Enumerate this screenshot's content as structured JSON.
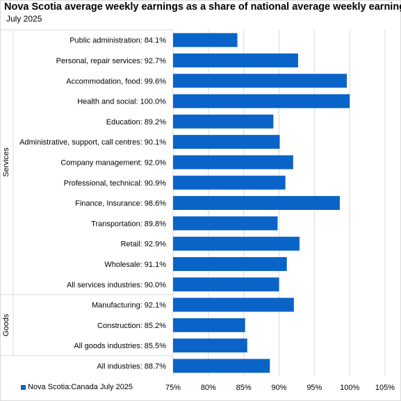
{
  "header": {
    "title": "Nova Scotia average weekly earnings as a share of national average weekly earnings",
    "subtitle": "July 2025"
  },
  "legend": {
    "label": "Nova Scotia:Canada July 2025"
  },
  "colors": {
    "bar": "#0a64c8",
    "grid": "#d9d9d9"
  },
  "chart_data": {
    "type": "bar",
    "orientation": "horizontal",
    "title": "Nova Scotia average weekly earnings as a share of national average weekly earnings",
    "subtitle": "July 2025",
    "xlim": [
      75,
      105
    ],
    "x_ticks": [
      "75%",
      "80%",
      "85%",
      "90%",
      "95%",
      "100%",
      "105%"
    ],
    "x_tick_values": [
      75,
      80,
      85,
      90,
      95,
      100,
      105
    ],
    "grid": "vertical",
    "legend_position": "bottom-left",
    "groups": [
      {
        "label": "Services",
        "start": 0,
        "end": 12
      },
      {
        "label": "Goods",
        "start": 13,
        "end": 15
      }
    ],
    "categories": [
      "Public administration:  84.1%",
      "Personal, repair services:  92.7%",
      "Accommodation, food:  99.6%",
      "Health and social:  100.0%",
      "Education:  89.2%",
      "Administrative, support, call centres:  90.1%",
      "Company management:  92.0%",
      "Professional, technical:  90.9%",
      "Finance, Insurance:  98.6%",
      "Transportation:  89.8%",
      "Retail:  92.9%",
      "Wholesale:  91.1%",
      "All services industries:  90.0%",
      "Manufacturing:  92.1%",
      "Construction:  85.2%",
      "All goods industries:  85.5%",
      "All industries:  88.7%"
    ],
    "series": [
      {
        "name": "Nova Scotia:Canada July 2025",
        "values": [
          84.1,
          92.7,
          99.6,
          100.0,
          89.2,
          90.1,
          92.0,
          90.9,
          98.6,
          89.8,
          92.9,
          91.1,
          90.0,
          92.1,
          85.2,
          85.5,
          88.7
        ]
      }
    ]
  }
}
